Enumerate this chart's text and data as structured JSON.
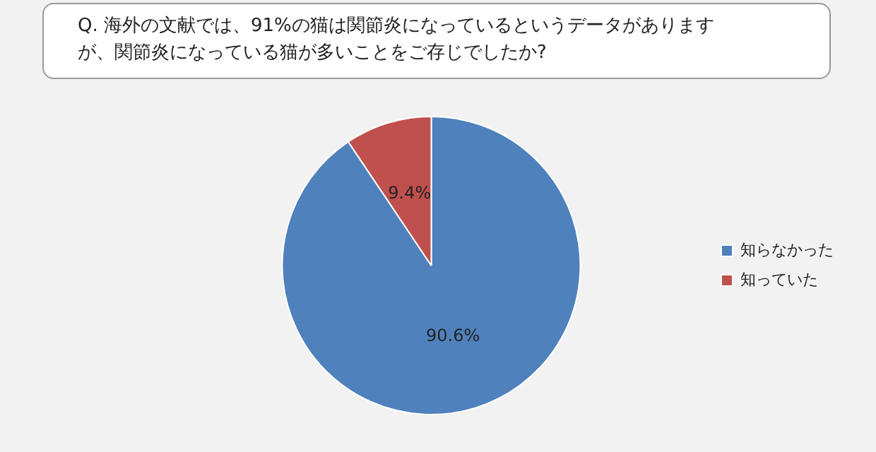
{
  "chart_data": {
    "type": "pie",
    "title": "Q. 海外の文献では、91%の猫は関節炎になっているというデータがありますが、関節炎になっている猫が多いことをご存じでしたか?",
    "categories": [
      "知らなかった",
      "知っていた"
    ],
    "values": [
      90.6,
      9.4
    ],
    "colors": [
      "#4f81bd",
      "#c0504d"
    ],
    "value_labels": [
      "90.6%",
      "9.4%"
    ],
    "legend": "right"
  }
}
